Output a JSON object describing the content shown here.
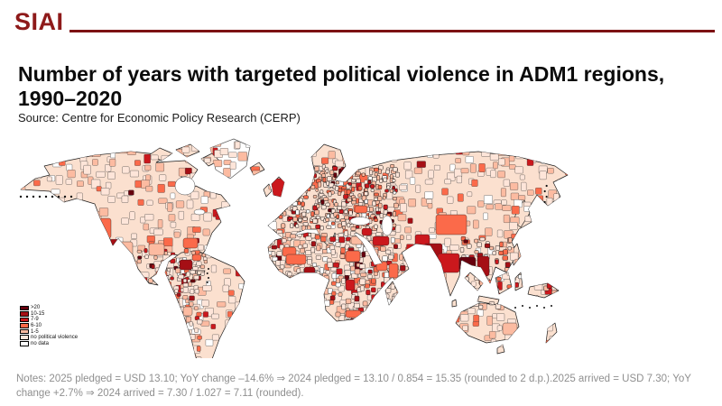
{
  "brand": {
    "logo_text": "SIAI"
  },
  "header": {
    "title": "Number of years with targeted political violence in ADM1 regions, 1990–2020",
    "source": "Source: Centre for Economic Policy Research (CERP)"
  },
  "map": {
    "description": "World choropleth map of ADM1 regions shaded by number of years with targeted political violence",
    "legend": {
      "items": [
        {
          "label": ">20",
          "color": "#67000d"
        },
        {
          "label": "10-15",
          "color": "#a50f15"
        },
        {
          "label": "7-9",
          "color": "#cb181d"
        },
        {
          "label": "6-10",
          "color": "#fb6a4a"
        },
        {
          "label": "1-5",
          "color": "#fcbba1"
        },
        {
          "label": "no political violence",
          "color": "#fee5d9"
        },
        {
          "label": "no data",
          "color": "#ffffff"
        }
      ]
    }
  },
  "notes": {
    "text": "Notes: 2025 pledged = USD 13.10; YoY change –14.6% ⇒ 2024 pledged = 13.10 / 0.854 = 15.35 (rounded to 2 d.p.).2025 arrived = USD 7.30; YoY change +2.7% ⇒ 2024 arrived = 7.30 / 1.027 = 7.11 (rounded).",
    "colors": {
      "text": "#8f8f8f"
    }
  },
  "colors": {
    "brand": "#8e1a1a",
    "rule": "#7c1113",
    "map_base_land": "#fbe0cf",
    "map_outline": "#1d1d1d"
  }
}
